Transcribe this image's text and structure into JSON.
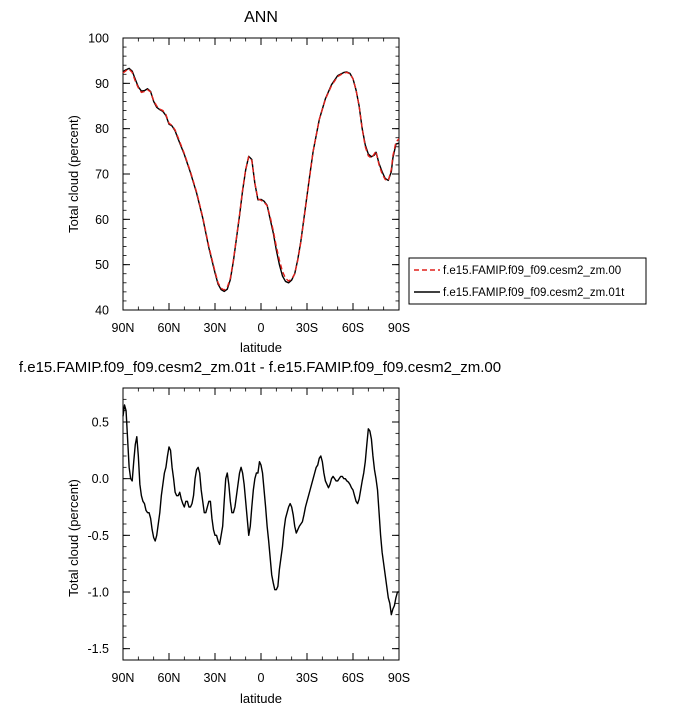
{
  "colors": {
    "series_00": "#e0201b",
    "series_01t": "#000000"
  },
  "chart_data": [
    {
      "type": "line",
      "title": "ANN",
      "xlabel": "latitude",
      "ylabel": "Total cloud (percent)",
      "x_ticks": [
        "90N",
        "60N",
        "30N",
        "0",
        "30S",
        "60S",
        "90S"
      ],
      "x_tick_values": [
        90,
        60,
        30,
        0,
        -30,
        -60,
        -90
      ],
      "y_ticks": [
        "40",
        "50",
        "60",
        "70",
        "80",
        "90",
        "100"
      ],
      "xlim": [
        90,
        -90
      ],
      "ylim": [
        40,
        100
      ],
      "legend_position": "right",
      "series": [
        {
          "name": "f.e15.FAMIP.f09_f09.cesm2_zm.00",
          "color": "#e0201b",
          "style": "dashed",
          "x": [
            90,
            88,
            86,
            84,
            82,
            80,
            78,
            76,
            74,
            72,
            70,
            68,
            66,
            64,
            62,
            60,
            58,
            56,
            54,
            50,
            46,
            42,
            38,
            34,
            30,
            28,
            26,
            24,
            22,
            20,
            18,
            16,
            14,
            12,
            10,
            8,
            6,
            4,
            2,
            0,
            -2,
            -4,
            -6,
            -8,
            -10,
            -12,
            -14,
            -16,
            -18,
            -20,
            -22,
            -24,
            -26,
            -28,
            -30,
            -32,
            -34,
            -38,
            -42,
            -46,
            -50,
            -54,
            -56,
            -58,
            -60,
            -62,
            -64,
            -66,
            -68,
            -70,
            -72,
            -74,
            -75,
            -77,
            -79,
            -81,
            -83,
            -85,
            -86,
            -88,
            -90
          ],
          "y": [
            92.3,
            92.8,
            93.1,
            92.4,
            90.5,
            89.0,
            88.0,
            88.2,
            88.6,
            88.1,
            86.2,
            85.0,
            84.3,
            84.0,
            83.1,
            81.2,
            80.7,
            79.7,
            78.0,
            74.5,
            70.5,
            66.0,
            60.5,
            54.0,
            48.5,
            46.0,
            44.8,
            44.4,
            45.0,
            47.0,
            51.0,
            56.0,
            61.0,
            66.5,
            71.0,
            73.8,
            73.0,
            68.0,
            64.5,
            64.2,
            63.8,
            63.0,
            60.5,
            57.5,
            54.0,
            51.0,
            48.5,
            47.0,
            46.4,
            46.8,
            48.0,
            51.0,
            55.0,
            60.0,
            65.0,
            70.0,
            75.0,
            82.0,
            86.5,
            89.5,
            91.5,
            92.3,
            92.4,
            92.1,
            91.0,
            88.5,
            85.0,
            80.0,
            76.0,
            74.0,
            73.5,
            74.5,
            75.0,
            72.0,
            70.0,
            68.8,
            68.5,
            71.0,
            74.0,
            77.0,
            77.8
          ]
        },
        {
          "name": "f.e15.FAMIP.f09_f09.cesm2_zm.01t",
          "color": "#000000",
          "style": "solid",
          "x": [
            90,
            88,
            86,
            84,
            82,
            80,
            78,
            76,
            74,
            72,
            70,
            68,
            66,
            64,
            62,
            60,
            58,
            56,
            54,
            50,
            46,
            42,
            38,
            34,
            30,
            28,
            26,
            24,
            22,
            20,
            18,
            16,
            14,
            12,
            10,
            8,
            6,
            4,
            2,
            0,
            -2,
            -4,
            -6,
            -8,
            -10,
            -12,
            -14,
            -16,
            -18,
            -20,
            -22,
            -24,
            -26,
            -28,
            -30,
            -32,
            -34,
            -38,
            -42,
            -46,
            -50,
            -54,
            -56,
            -58,
            -60,
            -62,
            -64,
            -66,
            -68,
            -70,
            -72,
            -74,
            -75,
            -77,
            -79,
            -81,
            -83,
            -85,
            -86,
            -88,
            -90
          ],
          "y": [
            92.6,
            93.0,
            93.3,
            92.7,
            90.9,
            89.2,
            88.3,
            88.4,
            88.8,
            88.2,
            86.0,
            84.7,
            84.2,
            83.8,
            82.9,
            81.0,
            80.6,
            79.5,
            77.7,
            74.3,
            70.3,
            65.8,
            60.3,
            53.7,
            48.2,
            45.7,
            44.5,
            44.1,
            44.6,
            46.7,
            50.8,
            55.8,
            60.8,
            66.3,
            70.9,
            73.9,
            73.2,
            67.9,
            64.3,
            64.4,
            64.0,
            63.1,
            60.0,
            57.0,
            53.2,
            50.0,
            47.5,
            46.3,
            46.0,
            46.6,
            48.0,
            51.2,
            55.2,
            60.2,
            65.2,
            70.2,
            75.0,
            82.0,
            86.6,
            89.7,
            91.7,
            92.4,
            92.5,
            92.2,
            91.0,
            88.5,
            85.0,
            80.0,
            76.4,
            74.4,
            73.8,
            74.2,
            74.8,
            72.3,
            70.5,
            69.0,
            68.6,
            70.5,
            73.5,
            76.6,
            76.8
          ]
        }
      ]
    },
    {
      "type": "line",
      "title": "f.e15.FAMIP.f09_f09.cesm2_zm.01t - f.e15.FAMIP.f09_f09.cesm2_zm.00",
      "xlabel": "latitude",
      "ylabel": "Total cloud (percent)",
      "x_ticks": [
        "90N",
        "60N",
        "30N",
        "0",
        "30S",
        "60S",
        "90S"
      ],
      "x_tick_values": [
        90,
        60,
        30,
        0,
        -30,
        -60,
        -90
      ],
      "y_ticks": [
        "0.5",
        "0.0",
        "-0.5",
        "-1.0",
        "-1.5"
      ],
      "y_tick_values": [
        0.5,
        0.0,
        -0.5,
        -1.0,
        -1.5
      ],
      "xlim": [
        90,
        -90
      ],
      "ylim": [
        -1.6,
        0.8
      ],
      "series": [
        {
          "color": "#000000",
          "style": "solid",
          "x": [
            90,
            89,
            88,
            87,
            86,
            85,
            84,
            83,
            82,
            81,
            80,
            79,
            78,
            77,
            76,
            75,
            74,
            73,
            72,
            71,
            70,
            69,
            68,
            67,
            66,
            65,
            64,
            63,
            62,
            61,
            60,
            59,
            58,
            57,
            56,
            55,
            54,
            53,
            52,
            51,
            50,
            49,
            48,
            47,
            46,
            45,
            44,
            43,
            42,
            41,
            40,
            39,
            38,
            37,
            36,
            35,
            34,
            33,
            32,
            31,
            30,
            29,
            28,
            27,
            26,
            25,
            24,
            23,
            22,
            21,
            20,
            19,
            18,
            17,
            16,
            15,
            14,
            13,
            12,
            11,
            10,
            9,
            8,
            7,
            6,
            5,
            4,
            3,
            2,
            1,
            0,
            -1,
            -2,
            -3,
            -4,
            -5,
            -6,
            -7,
            -8,
            -9,
            -10,
            -11,
            -12,
            -13,
            -14,
            -15,
            -16,
            -17,
            -18,
            -19,
            -20,
            -21,
            -22,
            -23,
            -24,
            -25,
            -26,
            -27,
            -28,
            -29,
            -30,
            -31,
            -32,
            -33,
            -34,
            -35,
            -36,
            -37,
            -38,
            -39,
            -40,
            -41,
            -42,
            -43,
            -44,
            -45,
            -46,
            -47,
            -48,
            -49,
            -50,
            -51,
            -52,
            -53,
            -54,
            -55,
            -56,
            -57,
            -58,
            -59,
            -60,
            -61,
            -62,
            -63,
            -64,
            -65,
            -66,
            -67,
            -68,
            -69,
            -70,
            -71,
            -72,
            -73,
            -74,
            -75,
            -76,
            -77,
            -78,
            -79,
            -80,
            -81,
            -82,
            -83,
            -84,
            -85,
            -86,
            -87,
            -88,
            -89,
            -90
          ],
          "y": [
            0.55,
            0.65,
            0.6,
            0.35,
            0.1,
            0.0,
            -0.02,
            0.15,
            0.3,
            0.37,
            0.2,
            -0.05,
            -0.15,
            -0.2,
            -0.22,
            -0.28,
            -0.3,
            -0.3,
            -0.35,
            -0.45,
            -0.52,
            -0.55,
            -0.5,
            -0.4,
            -0.3,
            -0.15,
            -0.05,
            0.05,
            0.1,
            0.2,
            0.28,
            0.25,
            0.1,
            0.0,
            -0.12,
            -0.15,
            -0.15,
            -0.12,
            -0.18,
            -0.22,
            -0.25,
            -0.2,
            -0.2,
            -0.25,
            -0.25,
            -0.22,
            -0.15,
            0.0,
            0.08,
            0.1,
            0.05,
            -0.1,
            -0.2,
            -0.3,
            -0.3,
            -0.25,
            -0.2,
            -0.2,
            -0.35,
            -0.45,
            -0.5,
            -0.5,
            -0.55,
            -0.58,
            -0.5,
            -0.42,
            -0.2,
            0.0,
            0.05,
            -0.05,
            -0.2,
            -0.3,
            -0.3,
            -0.25,
            -0.15,
            -0.05,
            0.05,
            0.1,
            0.05,
            -0.05,
            -0.2,
            -0.35,
            -0.5,
            -0.42,
            -0.25,
            -0.1,
            0.0,
            0.05,
            0.05,
            0.15,
            0.12,
            0.05,
            -0.1,
            -0.25,
            -0.42,
            -0.55,
            -0.7,
            -0.85,
            -0.92,
            -0.98,
            -0.98,
            -0.95,
            -0.8,
            -0.7,
            -0.6,
            -0.45,
            -0.35,
            -0.3,
            -0.25,
            -0.22,
            -0.25,
            -0.32,
            -0.42,
            -0.48,
            -0.45,
            -0.42,
            -0.4,
            -0.38,
            -0.32,
            -0.25,
            -0.2,
            -0.15,
            -0.1,
            -0.05,
            0.0,
            0.05,
            0.1,
            0.12,
            0.18,
            0.2,
            0.15,
            0.05,
            -0.02,
            -0.05,
            -0.08,
            -0.05,
            0.0,
            0.02,
            0.0,
            -0.02,
            -0.02,
            0.0,
            0.02,
            0.02,
            0.0,
            0.0,
            -0.02,
            -0.03,
            -0.05,
            -0.08,
            -0.1,
            -0.15,
            -0.2,
            -0.22,
            -0.18,
            -0.1,
            -0.02,
            0.05,
            0.15,
            0.3,
            0.44,
            0.42,
            0.35,
            0.2,
            0.08,
            0.0,
            -0.1,
            -0.3,
            -0.5,
            -0.65,
            -0.75,
            -0.85,
            -0.95,
            -1.05,
            -1.1,
            -1.2,
            -1.15,
            -1.12,
            -1.05,
            -1.0,
            -1.0
          ]
        }
      ]
    }
  ]
}
